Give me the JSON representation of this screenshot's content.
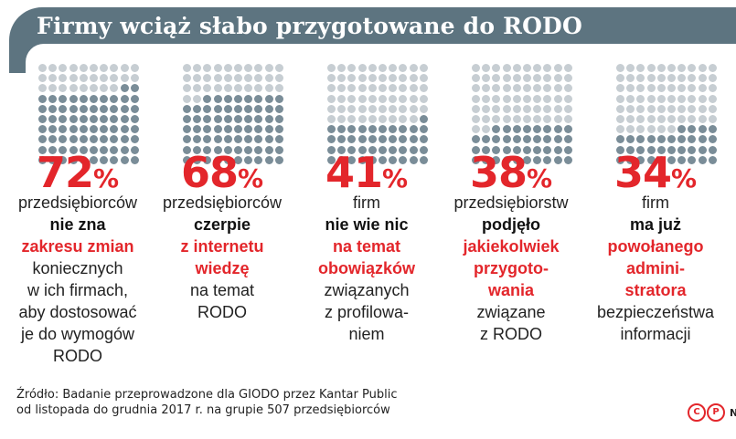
{
  "header": {
    "title": "Firmy wciąż słabo przygotowane do RODO"
  },
  "chart_data": {
    "type": "table",
    "grid_total_dots": 100,
    "colors": {
      "filled": "#7a8d98",
      "empty": "#c7ced3",
      "accent": "#e3262b",
      "header": "#5d7480"
    },
    "stats": [
      {
        "value": 72,
        "value_text": "72",
        "unit": "%",
        "lines": [
          {
            "text": "przedsiębiorców",
            "style": "normal"
          },
          {
            "text": "nie zna",
            "style": "bold"
          },
          {
            "text": "zakresu zmian",
            "style": "red"
          },
          {
            "text": "koniecznych",
            "style": "normal"
          },
          {
            "text": "w ich firmach,",
            "style": "normal"
          },
          {
            "text": "aby dostosować",
            "style": "normal"
          },
          {
            "text": "je do wymogów",
            "style": "normal"
          },
          {
            "text": "RODO",
            "style": "normal"
          }
        ]
      },
      {
        "value": 68,
        "value_text": "68",
        "unit": "%",
        "lines": [
          {
            "text": "przedsiębiorców",
            "style": "normal"
          },
          {
            "text": "czerpie",
            "style": "bold"
          },
          {
            "text": "z internetu",
            "style": "red"
          },
          {
            "text": "wiedzę",
            "style": "red"
          },
          {
            "text": "na temat",
            "style": "normal"
          },
          {
            "text": "RODO",
            "style": "normal"
          }
        ]
      },
      {
        "value": 41,
        "value_text": "41",
        "unit": "%",
        "lines": [
          {
            "text": "firm",
            "style": "normal"
          },
          {
            "text": "nie wie nic",
            "style": "bold"
          },
          {
            "text": "na temat",
            "style": "red"
          },
          {
            "text": "obowiązków",
            "style": "red"
          },
          {
            "text": "związanych",
            "style": "normal"
          },
          {
            "text": "z profilowa-",
            "style": "normal"
          },
          {
            "text": "niem",
            "style": "normal"
          }
        ]
      },
      {
        "value": 38,
        "value_text": "38",
        "unit": "%",
        "lines": [
          {
            "text": "przedsiębiorstw",
            "style": "normal"
          },
          {
            "text": "podjęło",
            "style": "bold"
          },
          {
            "text": "jakiekolwiek",
            "style": "red"
          },
          {
            "text": "przygoto-",
            "style": "red"
          },
          {
            "text": "wania",
            "style": "red"
          },
          {
            "text": "związane",
            "style": "normal"
          },
          {
            "text": "z RODO",
            "style": "normal"
          }
        ]
      },
      {
        "value": 34,
        "value_text": "34",
        "unit": "%",
        "lines": [
          {
            "text": "firm",
            "style": "normal"
          },
          {
            "text": "ma już",
            "style": "bold"
          },
          {
            "text": "powołanego",
            "style": "red"
          },
          {
            "text": "admini-",
            "style": "red"
          },
          {
            "text": "stratora",
            "style": "red"
          },
          {
            "text": "bezpieczeństwa",
            "style": "normal"
          },
          {
            "text": "informacji",
            "style": "normal"
          }
        ]
      }
    ]
  },
  "source": {
    "line1": "Źródło: Badanie przeprowadzone dla GIODO przez Kantar Public",
    "line2": "od listopada do grudnia 2017 r. na grupie 507 przedsiębiorców"
  },
  "license": {
    "cc_symbol": "C",
    "p_symbol": "P",
    "brand": "N"
  }
}
